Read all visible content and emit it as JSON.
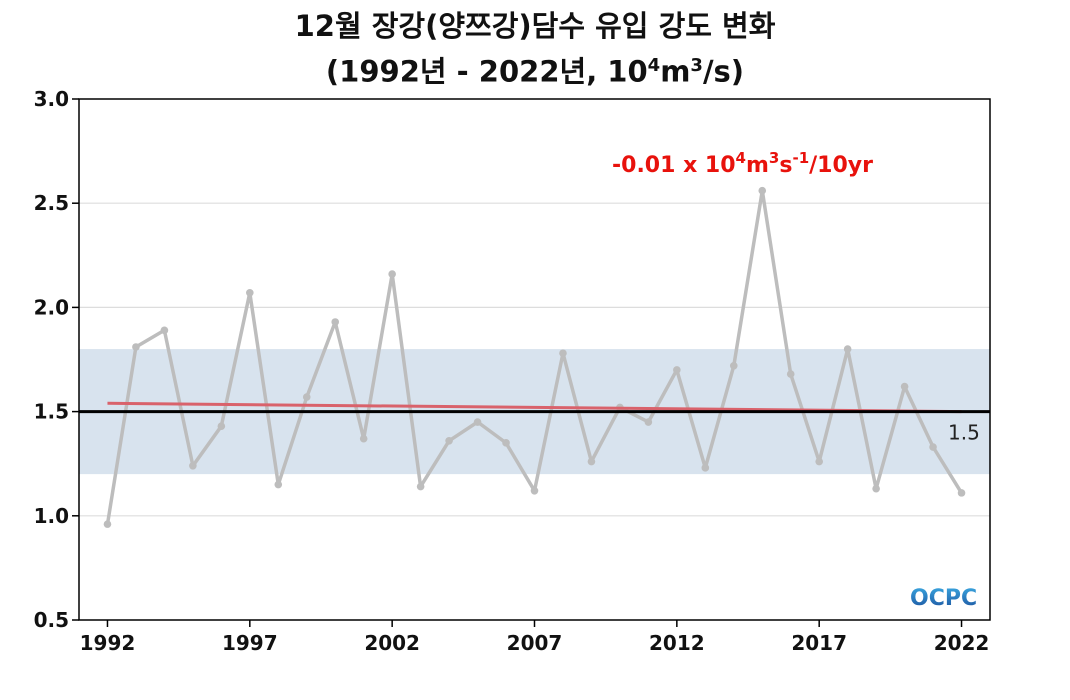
{
  "title": {
    "line1": "12월 장강(양쯔강)담수 유입 강도 변화",
    "line2_prefix": "(1992년 - 2022년, 10",
    "line2_sup1": "4",
    "line2_mid": "m",
    "line2_sup2": "3",
    "line2_suffix": "/s)"
  },
  "trend_label": {
    "prefix": "-0.01 x 10",
    "sup1": "4",
    "m": "m",
    "sup2": "3",
    "s": "s",
    "sup3": "-1",
    "suffix": "/10yr"
  },
  "logo": {
    "text": "OCPC"
  },
  "colors": {
    "series": "#bdbdbd",
    "trend": "#d9626b",
    "band": "#d8e3ee",
    "reference": "#000000",
    "trend_text": "#e8120c",
    "grid": "#dddddd"
  },
  "chart_data": {
    "type": "line",
    "x": [
      1992,
      1993,
      1994,
      1995,
      1996,
      1997,
      1998,
      1999,
      2000,
      2001,
      2002,
      2003,
      2004,
      2005,
      2006,
      2007,
      2008,
      2009,
      2010,
      2011,
      2012,
      2013,
      2014,
      2015,
      2016,
      2017,
      2018,
      2019,
      2020,
      2021,
      2022
    ],
    "series": [
      {
        "values": [
          0.96,
          1.81,
          1.89,
          1.24,
          1.43,
          2.07,
          1.15,
          1.57,
          1.93,
          1.37,
          2.16,
          1.14,
          1.36,
          1.45,
          1.35,
          1.12,
          1.78,
          1.26,
          1.52,
          1.45,
          1.7,
          1.23,
          1.72,
          2.56,
          1.68,
          1.26,
          1.8,
          1.13,
          1.62,
          1.33,
          1.11
        ]
      }
    ],
    "trend": {
      "start": [
        1992,
        1.54
      ],
      "end": [
        2022,
        1.5
      ]
    },
    "reference_value": 1.5,
    "reference_label": "1.5",
    "band": [
      1.2,
      1.8
    ],
    "xlim": [
      1991.0,
      2023.0
    ],
    "ylim": [
      0.5,
      3.0
    ],
    "xticks": [
      1992,
      1997,
      2002,
      2007,
      2012,
      2017,
      2022
    ],
    "xtick_labels": [
      "1992",
      "1997",
      "2002",
      "2007",
      "2012",
      "2017",
      "2022"
    ],
    "yticks": [
      0.5,
      1.0,
      1.5,
      2.0,
      2.5,
      3.0
    ],
    "ytick_labels": [
      "0.5",
      "1.0",
      "1.5",
      "2.0",
      "2.5",
      "3.0"
    ],
    "grid": "horizontal"
  }
}
